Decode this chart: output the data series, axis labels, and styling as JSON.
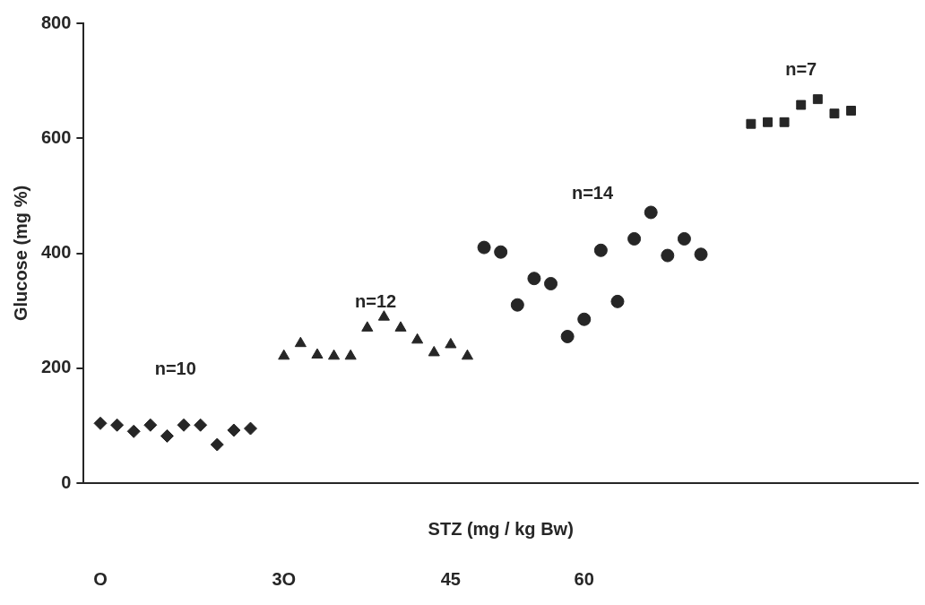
{
  "chart_data": {
    "type": "scatter",
    "xlabel": "STZ (mg / kg Bw)",
    "ylabel": "Glucose (mg %)",
    "categories": [
      null,
      "O",
      null,
      null,
      null,
      null,
      null,
      null,
      null,
      null,
      null,
      null,
      "3O",
      null,
      null,
      null,
      null,
      null,
      null,
      null,
      null,
      null,
      "45",
      null,
      null,
      null,
      null,
      null,
      null,
      null,
      "60",
      null,
      null,
      null,
      null,
      null,
      null,
      null,
      null,
      null,
      null,
      null,
      null,
      null,
      null,
      null,
      null,
      null,
      null,
      null,
      null
    ],
    "ylim": [
      0,
      800
    ],
    "yticks": [
      0,
      200,
      400,
      600,
      800
    ],
    "grid": false,
    "legend": false,
    "series": [
      {
        "color": "#262626",
        "marker": "diamond",
        "values": [
          null,
          104,
          101,
          90,
          101,
          82,
          101,
          101,
          67,
          92,
          95,
          null,
          null,
          null,
          null,
          null,
          null,
          null,
          null,
          null,
          null,
          null,
          null,
          null,
          null,
          null,
          null,
          null,
          null,
          null,
          null,
          null,
          null,
          null,
          null,
          null,
          null,
          null,
          null,
          null,
          null,
          null,
          null,
          null,
          null,
          null,
          null,
          null,
          null,
          null,
          null
        ]
      },
      {
        "color": "#262626",
        "marker": "triangle",
        "values": [
          null,
          null,
          null,
          null,
          null,
          null,
          null,
          null,
          null,
          null,
          null,
          null,
          221,
          243,
          223,
          221,
          221,
          270,
          289,
          270,
          249,
          227,
          241,
          221,
          null,
          null,
          null,
          null,
          null,
          null,
          null,
          null,
          null,
          null,
          null,
          null,
          null,
          null,
          null,
          null,
          null,
          null,
          null,
          null,
          null,
          null,
          null,
          null,
          null,
          null,
          null
        ]
      },
      {
        "color": "#262626",
        "marker": "circle",
        "values": [
          null,
          null,
          null,
          null,
          null,
          null,
          null,
          null,
          null,
          null,
          null,
          null,
          null,
          null,
          null,
          null,
          null,
          null,
          null,
          null,
          null,
          null,
          null,
          null,
          410,
          402,
          310,
          356,
          347,
          255,
          285,
          405,
          316,
          425,
          471,
          396,
          425,
          398,
          null,
          null,
          null,
          null,
          null,
          null,
          null,
          null,
          null,
          null,
          null,
          null,
          null
        ]
      },
      {
        "color": "#262626",
        "marker": "square",
        "values": [
          null,
          null,
          null,
          null,
          null,
          null,
          null,
          null,
          null,
          null,
          null,
          null,
          null,
          null,
          null,
          null,
          null,
          null,
          null,
          null,
          null,
          null,
          null,
          null,
          null,
          null,
          null,
          null,
          null,
          null,
          null,
          null,
          null,
          null,
          null,
          null,
          null,
          null,
          null,
          null,
          625,
          628,
          628,
          658,
          668,
          643,
          648,
          null,
          null,
          null,
          null
        ]
      }
    ],
    "annotations": [
      "n=10",
      "n=12",
      "n=14",
      "n=7"
    ]
  }
}
